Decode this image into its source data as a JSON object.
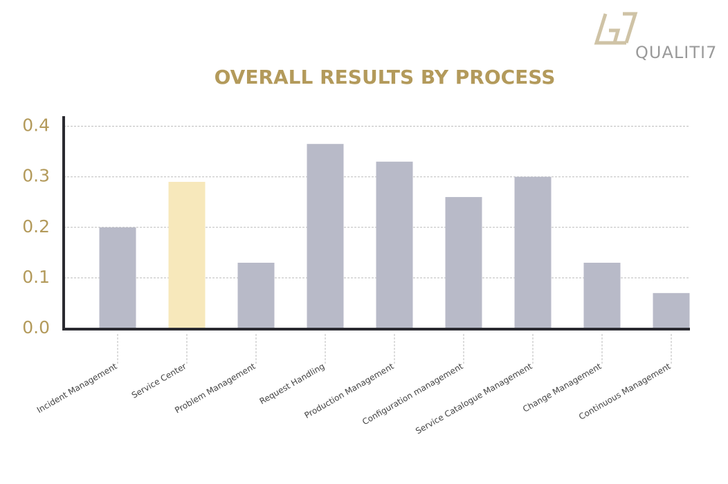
{
  "logo": "QUALITI7",
  "chart_data": {
    "type": "bar",
    "title": "OVERALL RESULTS BY PROCESS",
    "categories": [
      "Incident Management",
      "Service Center",
      "Problem Management",
      "Request Handling",
      "Production Management",
      "Configuration management",
      "Service Catalogue Management",
      "Change Management",
      "Continuous Management"
    ],
    "values": [
      0.2,
      0.29,
      0.13,
      0.365,
      0.33,
      0.26,
      0.3,
      0.13,
      0.07
    ],
    "colors": [
      "#b8bac8",
      "#f7e8bb",
      "#b8bac8",
      "#b8bac8",
      "#b8bac8",
      "#b8bac8",
      "#b8bac8",
      "#b8bac8",
      "#b8bac8"
    ],
    "ylim": [
      0,
      0.42
    ],
    "yticks": [
      {
        "value": 0,
        "label": "0.0"
      },
      0.1,
      0.2,
      0.3,
      0.4
    ],
    "grid": true
  }
}
